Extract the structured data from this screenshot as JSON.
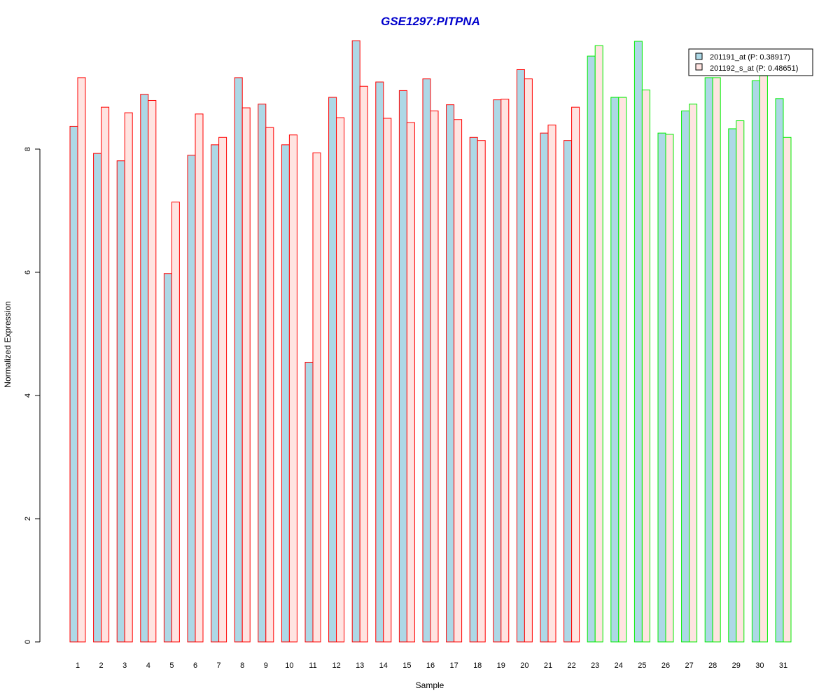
{
  "chart_data": {
    "type": "bar",
    "title": "GSE1297:PITPNA",
    "xlabel": "Sample",
    "ylabel": "Normalized Expression",
    "ylim": [
      0,
      9.8
    ],
    "yticks": [
      0,
      2,
      4,
      6,
      8
    ],
    "grid": false,
    "legend_position": "top-right",
    "categories": [
      "1",
      "2",
      "3",
      "4",
      "5",
      "6",
      "7",
      "8",
      "9",
      "10",
      "11",
      "12",
      "13",
      "14",
      "15",
      "16",
      "17",
      "18",
      "19",
      "20",
      "21",
      "22",
      "23",
      "24",
      "25",
      "26",
      "27",
      "28",
      "29",
      "30",
      "31"
    ],
    "group_split_after": 22,
    "series": [
      {
        "name": "201191_at (P: 0.38917)",
        "values": [
          8.37,
          7.93,
          7.81,
          8.89,
          5.98,
          7.9,
          8.07,
          9.16,
          8.73,
          8.07,
          4.54,
          8.84,
          9.76,
          9.09,
          8.95,
          9.14,
          8.72,
          8.19,
          8.8,
          9.29,
          8.26,
          8.14,
          9.51,
          8.84,
          9.75,
          8.26,
          8.62,
          9.16,
          8.33,
          9.11,
          8.82
        ],
        "fill": "#add8e6"
      },
      {
        "name": "201192_s_at (P: 0.48651)",
        "values": [
          9.16,
          8.68,
          8.59,
          8.79,
          7.14,
          8.57,
          8.19,
          8.67,
          8.35,
          8.23,
          7.94,
          8.51,
          9.02,
          8.5,
          8.43,
          8.62,
          8.48,
          8.14,
          8.81,
          9.14,
          8.39,
          8.68,
          9.68,
          8.84,
          8.96,
          8.24,
          8.73,
          9.16,
          8.46,
          9.19,
          8.19
        ],
        "fill": "#ffe4e1"
      }
    ],
    "border_colors": {
      "group1": "#ff0000",
      "group2": "#00ee00"
    },
    "title_color": "#0000cc"
  }
}
